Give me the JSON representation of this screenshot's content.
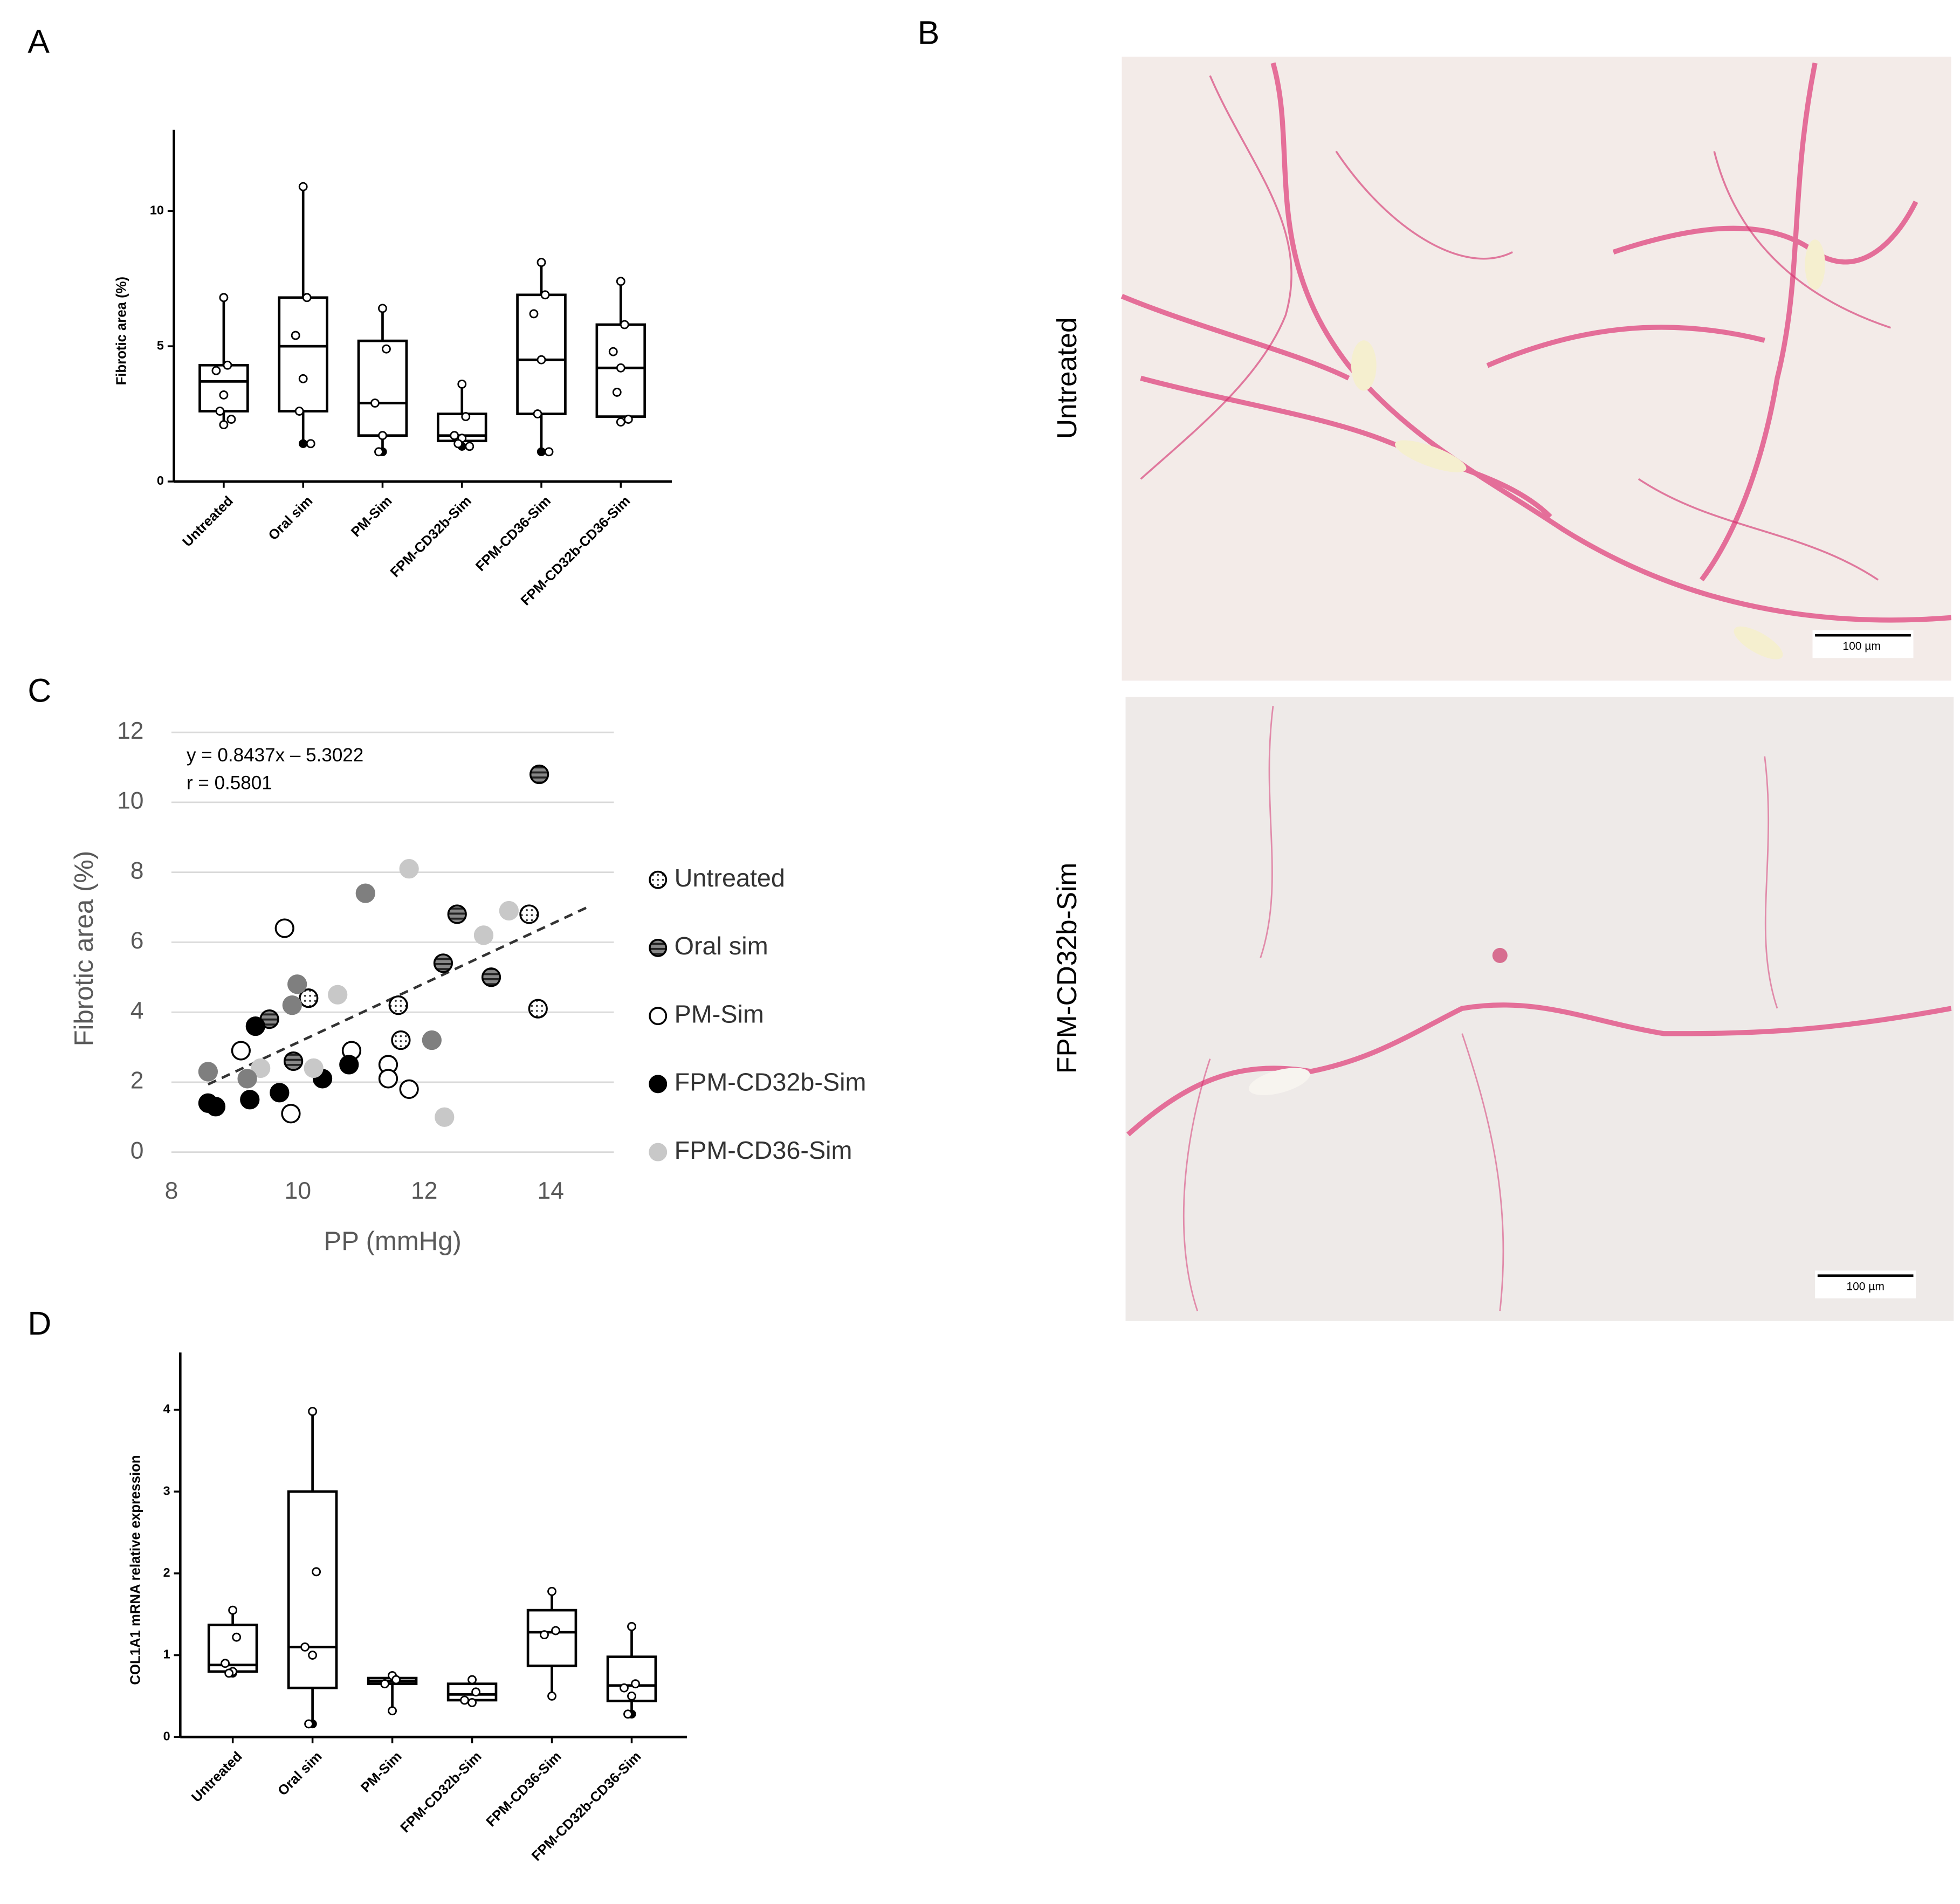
{
  "panel_labels": [
    "A",
    "B",
    "C",
    "D"
  ],
  "micrographs": {
    "labels": [
      "Untreated",
      "FPM-CD32b-Sim"
    ],
    "scale_bars": [
      "100 µm",
      "100 µm"
    ]
  },
  "chart_data": [
    {
      "type": "box",
      "ylabel": "Fibrotic area (%)",
      "categories": [
        "Untreated",
        "Oral sim",
        "PM-Sim",
        "FPM-CD32b-Sim",
        "FPM-CD36-Sim",
        "FPM-CD32b-CD36-Sim"
      ],
      "ylim": [
        0,
        13
      ],
      "yticks": [
        0,
        5,
        10
      ],
      "boxes": [
        {
          "min": 2.1,
          "q1": 2.6,
          "median": 3.7,
          "q3": 4.3,
          "max": 6.8,
          "points": [
            6.8,
            4.3,
            4.1,
            3.2,
            2.6,
            2.3,
            2.1
          ]
        },
        {
          "min": 1.4,
          "q1": 2.6,
          "median": 5.0,
          "q3": 6.8,
          "max": 10.9,
          "points": [
            10.9,
            6.8,
            5.4,
            3.8,
            2.6,
            1.4
          ]
        },
        {
          "min": 1.1,
          "q1": 1.7,
          "median": 2.9,
          "q3": 5.2,
          "max": 6.4,
          "points": [
            6.4,
            4.9,
            2.9,
            1.7,
            1.1
          ]
        },
        {
          "min": 1.3,
          "q1": 1.5,
          "median": 1.7,
          "q3": 2.5,
          "max": 3.6,
          "points": [
            3.6,
            2.4,
            1.7,
            1.6,
            1.4,
            1.3
          ]
        },
        {
          "min": 1.1,
          "q1": 2.5,
          "median": 4.5,
          "q3": 6.9,
          "max": 8.1,
          "points": [
            8.1,
            6.9,
            6.2,
            4.5,
            2.5,
            1.1
          ]
        },
        {
          "min": 2.2,
          "q1": 2.4,
          "median": 4.2,
          "q3": 5.8,
          "max": 7.4,
          "points": [
            7.4,
            5.8,
            4.8,
            4.2,
            3.3,
            2.3,
            2.2
          ]
        }
      ]
    },
    {
      "type": "scatter",
      "xlabel": "PP (mmHg)",
      "ylabel": "Fibrotic area (%)",
      "xlim": [
        8,
        15
      ],
      "xticks": [
        8,
        10,
        12,
        14
      ],
      "ylim": [
        0,
        12
      ],
      "yticks": [
        0,
        2,
        4,
        6,
        8,
        10,
        12
      ],
      "grid": true,
      "annotations": [
        "y = 0.8437x – 5.3022",
        "r = 0.5801"
      ],
      "trendline": {
        "slope": 0.8437,
        "intercept": -5.3022
      },
      "series": [
        {
          "name": "Untreated",
          "color": "#ffffff",
          "pattern": "dots",
          "x": [
            10.17,
            11.63,
            11.59,
            13.66,
            13.8
          ],
          "values": [
            4.4,
            3.2,
            4.2,
            6.8,
            4.1
          ]
        },
        {
          "name": "Oral sim",
          "color": "#888888",
          "pattern": "stripes",
          "x": [
            13.82,
            12.52,
            12.3,
            13.06,
            9.55,
            9.93
          ],
          "values": [
            10.8,
            6.8,
            5.4,
            5.0,
            3.8,
            2.6
          ]
        },
        {
          "name": "PM-Sim",
          "color": "#ffffff",
          "x": [
            9.79,
            9.1,
            10.85,
            11.43,
            11.43,
            11.76,
            9.89
          ],
          "values": [
            6.4,
            2.9,
            2.9,
            2.5,
            2.1,
            1.8,
            1.1
          ]
        },
        {
          "name": "FPM-CD32b-Sim",
          "color": "#000000",
          "x": [
            9.33,
            8.7,
            9.24,
            9.71,
            10.39,
            10.81,
            8.58
          ],
          "values": [
            3.6,
            1.3,
            1.5,
            1.7,
            2.1,
            2.5,
            1.4
          ]
        },
        {
          "name": "FPM-CD36-Sim",
          "color": "#c8c8c8",
          "x": [
            11.76,
            13.34,
            12.94,
            10.63,
            10.25,
            9.41,
            12.32
          ],
          "values": [
            8.1,
            6.9,
            6.2,
            4.5,
            2.4,
            2.4,
            1.0
          ]
        },
        {
          "color": "#7f7f7f",
          "x": [
            8.58,
            9.2,
            9.91,
            11.07,
            12.12,
            9.99
          ],
          "values": [
            2.3,
            2.1,
            4.2,
            7.4,
            3.2,
            4.8
          ]
        }
      ]
    },
    {
      "type": "box",
      "ylabel": "COL1A1 mRNA relative expression",
      "categories": [
        "Untreated",
        "Oral sim",
        "PM-Sim",
        "FPM-CD32b-Sim",
        "FPM-CD36-Sim",
        "FPM-CD32b-CD36-Sim"
      ],
      "ylim": [
        0,
        4.7
      ],
      "yticks": [
        0,
        1,
        2,
        3,
        4
      ],
      "boxes": [
        {
          "min": 0.78,
          "q1": 0.8,
          "median": 0.88,
          "q3": 1.37,
          "max": 1.55,
          "points": [
            1.55,
            1.22,
            0.9,
            0.8,
            0.78
          ]
        },
        {
          "min": 0.16,
          "q1": 0.6,
          "median": 1.1,
          "q3": 3.0,
          "max": 3.98,
          "points": [
            3.98,
            2.02,
            1.1,
            1.0,
            0.16
          ]
        },
        {
          "min": 0.32,
          "q1": 0.65,
          "median": 0.68,
          "q3": 0.72,
          "max": 0.75,
          "points": [
            0.75,
            0.7,
            0.65,
            0.32
          ]
        },
        {
          "min": 0.42,
          "q1": 0.45,
          "median": 0.52,
          "q3": 0.65,
          "max": 0.7,
          "points": [
            0.7,
            0.55,
            0.45,
            0.42
          ]
        },
        {
          "min": 0.5,
          "q1": 0.87,
          "median": 1.28,
          "q3": 1.55,
          "max": 1.78,
          "points": [
            1.78,
            1.3,
            1.25,
            0.5
          ]
        },
        {
          "min": 0.28,
          "q1": 0.44,
          "median": 0.63,
          "q3": 0.98,
          "max": 1.35,
          "points": [
            1.35,
            0.65,
            0.6,
            0.5,
            0.28
          ]
        }
      ]
    }
  ]
}
